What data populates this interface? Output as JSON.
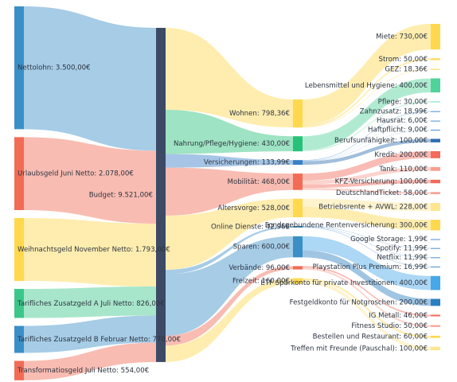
{
  "chart_data": {
    "type": "sankey",
    "nodes": [
      {
        "label": "Nettolohn: 3.500,00€",
        "value": 3500,
        "color": "#3a8fc7"
      },
      {
        "label": "Urlaubsgeld Juni Netto: 2.078,00€",
        "value": 2078,
        "color": "#f26b55"
      },
      {
        "label": "Weihnachtsgeld November Netto: 1.793,00€",
        "value": 1793,
        "color": "#ffd84d"
      },
      {
        "label": "Tarifliches Zusatzgeld A Juli Netto: 826,00€",
        "value": 826,
        "color": "#3cc78a"
      },
      {
        "label": "Tarifliches Zusatzgeld B Februar Netto: 770,00€",
        "value": 770,
        "color": "#3a8fc7"
      },
      {
        "label": "Transformatiosgeld Juli Netto: 554,00€",
        "value": 554,
        "color": "#f26b55"
      },
      {
        "label": "Budget: 9.521,00€",
        "value": 9521,
        "color": "#3d4a66"
      },
      {
        "label": "Wohnen: 798,36€",
        "value": 798.36,
        "color": "#ffd84d"
      },
      {
        "label": "Nahrung/Pflege/Hygiene: 430,00€",
        "value": 430,
        "color": "#27c27a"
      },
      {
        "label": "Versicherungen: 133,99€",
        "value": 133.99,
        "color": "#3a7fc7"
      },
      {
        "label": "Mobilität: 468,00€",
        "value": 468,
        "color": "#f26b55"
      },
      {
        "label": "Altersvorge: 528,00€",
        "value": 528,
        "color": "#ffd84d"
      },
      {
        "label": "Online Dienste: 42,96€",
        "value": 42.96,
        "color": "#3a8fc7"
      },
      {
        "label": "Sparen: 600,00€",
        "value": 600,
        "color": "#3a8fc7"
      },
      {
        "label": "Verbände: 96,00€",
        "value": 96,
        "color": "#f26b55"
      },
      {
        "label": "Freizeit: 160,00€",
        "value": 160,
        "color": "#ffd84d"
      },
      {
        "label": "Miete: 730,00€",
        "value": 730,
        "color": "#ffd84d"
      },
      {
        "label": "Strom: 50,00€",
        "value": 50,
        "color": "#ffd84d"
      },
      {
        "label": "GEZ: 18,36€",
        "value": 18.36,
        "color": "#ffd84d"
      },
      {
        "label": "Lebensmittel und Hygiene: 400,00€",
        "value": 400,
        "color": "#4fd39a"
      },
      {
        "label": "Pflege: 30,00€",
        "value": 30,
        "color": "#8fe3bd"
      },
      {
        "label": "Zahnzusatz: 18,99€",
        "value": 18.99,
        "color": "#4a90d0"
      },
      {
        "label": "Hausrat: 6,00€",
        "value": 6,
        "color": "#4a90d0"
      },
      {
        "label": "Haftpflicht: 9,00€",
        "value": 9,
        "color": "#4a90d0"
      },
      {
        "label": "Berufsunfähigkeit: 100,00€",
        "value": 100,
        "color": "#2f6fb0"
      },
      {
        "label": "Kredit: 200,00€",
        "value": 200,
        "color": "#f26b5b"
      },
      {
        "label": "Tank: 110,00€",
        "value": 110,
        "color": "#f7a090"
      },
      {
        "label": "KFZ-Versicherung: 100,00€",
        "value": 100,
        "color": "#f26b5b"
      },
      {
        "label": "DeutschlandTicket: 58,00€",
        "value": 58,
        "color": "#f7a090"
      },
      {
        "label": "Betriebsrente + AVWL: 228,00€",
        "value": 228,
        "color": "#ffe590"
      },
      {
        "label": "Fondsgebundene Rentenversicherung: 300,00€",
        "value": 300,
        "color": "#ffd84d"
      },
      {
        "label": "Google Storage: 1,99€",
        "value": 1.99,
        "color": "#4a90d0"
      },
      {
        "label": "Spotify: 11,99€",
        "value": 11.99,
        "color": "#4a90d0"
      },
      {
        "label": "Netflix: 11,99€",
        "value": 11.99,
        "color": "#4a90d0"
      },
      {
        "label": "Playstation Plus Premium: 16,99€",
        "value": 16.99,
        "color": "#4a90d0"
      },
      {
        "label": "ETF Sparkonto für private Investitionen: 400,00€",
        "value": 400,
        "color": "#47a7e8"
      },
      {
        "label": "Festgeldkonto für Notgroschen: 200,00€",
        "value": 200,
        "color": "#2a7fc0"
      },
      {
        "label": "IG Metall: 46,00€",
        "value": 46,
        "color": "#f26b5b"
      },
      {
        "label": "Fitness Studio: 50,00€",
        "value": 50,
        "color": "#f7a090"
      },
      {
        "label": "Bestellen und Restaurant: 60,00€",
        "value": 60,
        "color": "#ffd84d"
      },
      {
        "label": "Treffen mit Freunde (Pauschal): 100,00€",
        "value": 100,
        "color": "#ffe590"
      }
    ],
    "links": [
      {
        "source": 0,
        "target": 6,
        "value": 3500
      },
      {
        "source": 1,
        "target": 6,
        "value": 2078
      },
      {
        "source": 2,
        "target": 6,
        "value": 1793
      },
      {
        "source": 3,
        "target": 6,
        "value": 826
      },
      {
        "source": 4,
        "target": 6,
        "value": 770
      },
      {
        "source": 5,
        "target": 6,
        "value": 554
      },
      {
        "source": 6,
        "target": 7,
        "value": 798.36
      },
      {
        "source": 6,
        "target": 8,
        "value": 430
      },
      {
        "source": 6,
        "target": 9,
        "value": 133.99
      },
      {
        "source": 6,
        "target": 10,
        "value": 468
      },
      {
        "source": 6,
        "target": 11,
        "value": 528
      },
      {
        "source": 6,
        "target": 12,
        "value": 42.96
      },
      {
        "source": 6,
        "target": 13,
        "value": 600
      },
      {
        "source": 6,
        "target": 14,
        "value": 96
      },
      {
        "source": 6,
        "target": 15,
        "value": 160
      },
      {
        "source": 7,
        "target": 16,
        "value": 730
      },
      {
        "source": 7,
        "target": 17,
        "value": 50
      },
      {
        "source": 7,
        "target": 18,
        "value": 18.36
      },
      {
        "source": 8,
        "target": 19,
        "value": 400
      },
      {
        "source": 8,
        "target": 20,
        "value": 30
      },
      {
        "source": 9,
        "target": 21,
        "value": 18.99
      },
      {
        "source": 9,
        "target": 22,
        "value": 6
      },
      {
        "source": 9,
        "target": 23,
        "value": 9
      },
      {
        "source": 9,
        "target": 24,
        "value": 100
      },
      {
        "source": 10,
        "target": 25,
        "value": 200
      },
      {
        "source": 10,
        "target": 26,
        "value": 110
      },
      {
        "source": 10,
        "target": 27,
        "value": 100
      },
      {
        "source": 10,
        "target": 28,
        "value": 58
      },
      {
        "source": 11,
        "target": 29,
        "value": 228
      },
      {
        "source": 11,
        "target": 30,
        "value": 300
      },
      {
        "source": 12,
        "target": 31,
        "value": 1.99
      },
      {
        "source": 12,
        "target": 32,
        "value": 11.99
      },
      {
        "source": 12,
        "target": 33,
        "value": 11.99
      },
      {
        "source": 12,
        "target": 34,
        "value": 16.99
      },
      {
        "source": 13,
        "target": 35,
        "value": 400
      },
      {
        "source": 13,
        "target": 36,
        "value": 200
      },
      {
        "source": 14,
        "target": 37,
        "value": 46
      },
      {
        "source": 14,
        "target": 38,
        "value": 50
      },
      {
        "source": 15,
        "target": 39,
        "value": 60
      },
      {
        "source": 15,
        "target": 40,
        "value": 100
      }
    ]
  }
}
